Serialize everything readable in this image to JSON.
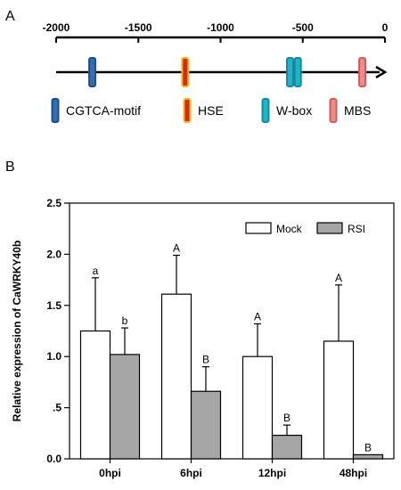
{
  "panel_a": {
    "label": "A",
    "axis": {
      "min": -2000,
      "max": 0,
      "ticks": [
        -2000,
        -1500,
        -1000,
        -500,
        0
      ],
      "tick_labels": [
        "-2000",
        "-1500",
        "-1000",
        "-500",
        "0"
      ]
    },
    "elements": [
      {
        "type": "CGTCA-motif",
        "position": -1780
      },
      {
        "type": "HSE",
        "position": -1215
      },
      {
        "type": "W-box",
        "position": -577
      },
      {
        "type": "W-box",
        "position": -530
      },
      {
        "type": "MBS",
        "position": -138
      }
    ],
    "legend": [
      {
        "label": "CGTCA-motif",
        "fill": "#2e6fb5",
        "stroke": "#1d4f8a"
      },
      {
        "label": "HSE",
        "fill": "#d22a1e",
        "stroke": "#f2b51c"
      },
      {
        "label": "W-box",
        "fill": "#23b3c9",
        "stroke": "#158a9c"
      },
      {
        "label": "MBS",
        "fill": "#ee8c8a",
        "stroke": "#c8605d"
      }
    ]
  },
  "panel_b": {
    "label": "B"
  },
  "chart_data": {
    "type": "bar",
    "categories": [
      "0hpi",
      "6hpi",
      "12hpi",
      "48hpi"
    ],
    "series": [
      {
        "name": "Mock",
        "values": [
          1.25,
          1.61,
          1.0,
          1.15
        ],
        "errors": [
          0.52,
          0.38,
          0.32,
          0.55
        ],
        "letters": [
          "a",
          "A",
          "A",
          "A"
        ],
        "color": "#ffffff"
      },
      {
        "name": "RSI",
        "values": [
          1.02,
          0.66,
          0.23,
          0.04
        ],
        "errors": [
          0.26,
          0.24,
          0.1,
          0.0
        ],
        "letters": [
          "b",
          "B",
          "B",
          "B"
        ],
        "color": "#a6a6a6"
      }
    ],
    "ylabel": "Relative expression of CaWRKY40b",
    "xlabel": "",
    "ylim": [
      0,
      2.5
    ],
    "yticks": [
      0,
      0.5,
      1.0,
      1.5,
      2.0,
      2.5
    ],
    "ytick_labels": [
      "0.0",
      ".5",
      "1.0",
      "1.5",
      "2.0",
      "2.5"
    ],
    "legend_position": "top-right",
    "grid": false
  }
}
